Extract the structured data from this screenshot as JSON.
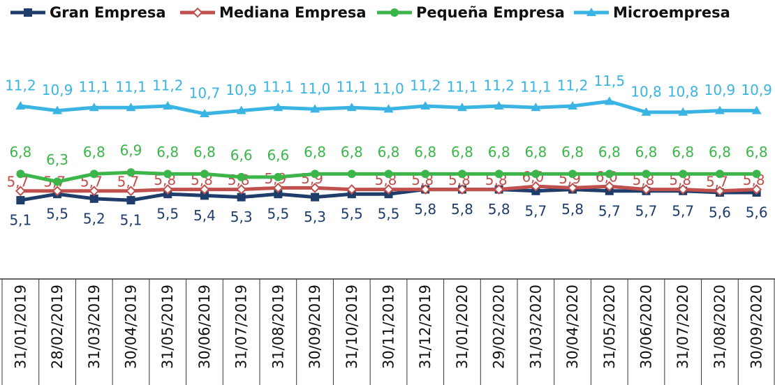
{
  "chart_data": {
    "type": "line",
    "categories": [
      "31/01/2019",
      "28/02/2019",
      "31/03/2019",
      "30/04/2019",
      "31/05/2019",
      "30/06/2019",
      "31/07/2019",
      "31/08/2019",
      "30/09/2019",
      "31/10/2019",
      "30/11/2019",
      "31/12/2019",
      "31/01/2020",
      "29/02/2020",
      "31/03/2020",
      "30/04/2020",
      "31/05/2020",
      "30/06/2020",
      "31/07/2020",
      "31/08/2020",
      "30/09/2020"
    ],
    "series": [
      {
        "name": "Gran Empresa",
        "color": "#1f3d6b",
        "marker": "square",
        "values": [
          5.1,
          5.5,
          5.2,
          5.1,
          5.5,
          5.4,
          5.3,
          5.5,
          5.3,
          5.5,
          5.5,
          5.8,
          5.8,
          5.8,
          5.7,
          5.8,
          5.7,
          5.7,
          5.7,
          5.6,
          5.6
        ],
        "value_labels": [
          "5,1",
          "5,5",
          "5,2",
          "5,1",
          "5,5",
          "5,4",
          "5,3",
          "5,5",
          "5,3",
          "5,5",
          "5,5",
          "5,8",
          "5,8",
          "5,8",
          "5,7",
          "5,8",
          "5,7",
          "5,7",
          "5,7",
          "5,6",
          "5,6"
        ]
      },
      {
        "name": "Mediana Empresa",
        "color": "#c0504d",
        "marker": "diamond",
        "values": [
          5.7,
          5.7,
          5.7,
          5.7,
          5.8,
          5.8,
          5.8,
          5.9,
          5.9,
          5.8,
          5.8,
          5.8,
          5.8,
          5.8,
          6.0,
          5.9,
          6.0,
          5.8,
          5.8,
          5.7,
          5.8
        ],
        "value_labels": [
          "5,7",
          "5,7",
          "5,7",
          "5,7",
          "5,8",
          "5,8",
          "5,8",
          "5,9",
          "5,9",
          null,
          "5,8",
          "5,8",
          "5,8",
          "5,8",
          "6,0",
          "5,9",
          "6,0",
          "5,8",
          "5,8",
          "5,7",
          "5,8"
        ]
      },
      {
        "name": "Pequeña Empresa",
        "color": "#3cb54a",
        "marker": "circle",
        "values": [
          6.8,
          6.3,
          6.8,
          6.9,
          6.8,
          6.8,
          6.6,
          6.6,
          6.8,
          6.8,
          6.8,
          6.8,
          6.8,
          6.8,
          6.8,
          6.8,
          6.8,
          6.8,
          6.8,
          6.8,
          6.8
        ],
        "value_labels": [
          "6,8",
          "6,3",
          "6,8",
          "6,9",
          "6,8",
          "6,8",
          "6,6",
          "6,6",
          "6,8",
          "6,8",
          "6,8",
          "6,8",
          "6,8",
          "6,8",
          "6,8",
          "6,8",
          "6,8",
          "6,8",
          "6,8",
          "6,8",
          "6,8"
        ]
      },
      {
        "name": "Microempresa",
        "color": "#3ab4e2",
        "marker": "triangle",
        "values": [
          11.2,
          10.9,
          11.1,
          11.1,
          11.2,
          10.7,
          10.9,
          11.1,
          11.0,
          11.1,
          11.0,
          11.2,
          11.1,
          11.2,
          11.1,
          11.2,
          11.5,
          10.8,
          10.8,
          10.9,
          10.9
        ],
        "value_labels": [
          "11,2",
          "10,9",
          "11,1",
          "11,1",
          "11,2",
          "10,7",
          "10,9",
          "11,1",
          "11,0",
          "11,1",
          "11,0",
          "11,2",
          "11,1",
          "11,2",
          "11,1",
          "11,2",
          "11,5",
          "10,8",
          "10,8",
          "10,9",
          "10,9"
        ]
      }
    ],
    "ylim": [
      0,
      14
    ],
    "legend": "top"
  }
}
